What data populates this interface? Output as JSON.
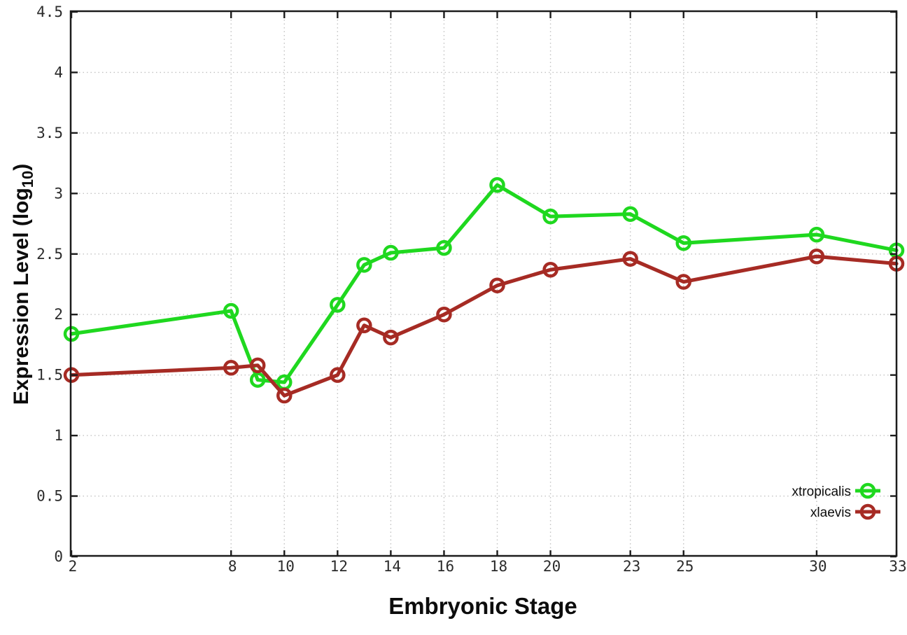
{
  "chart_data": {
    "type": "line",
    "title": "",
    "xlabel": "Embryonic Stage",
    "ylabel": "Expression Level (log10)",
    "ylabel_parts": {
      "prefix": "Expression Level (log",
      "sub": "10",
      "suffix": ")"
    },
    "x": [
      2,
      8,
      9,
      10,
      12,
      13,
      14,
      16,
      18,
      20,
      23,
      25,
      30,
      33
    ],
    "series": [
      {
        "name": "xtropicalis",
        "color": "#1fd81f",
        "values": [
          1.84,
          2.03,
          1.46,
          1.44,
          2.08,
          2.41,
          2.51,
          2.55,
          3.07,
          2.81,
          2.83,
          2.59,
          2.66,
          2.53
        ]
      },
      {
        "name": "xlaevis",
        "color": "#a62b24",
        "values": [
          1.5,
          1.56,
          1.58,
          1.33,
          1.5,
          1.91,
          1.81,
          2.0,
          2.24,
          2.37,
          2.46,
          2.27,
          2.48,
          2.42
        ]
      }
    ],
    "x_ticks": [
      2,
      8,
      10,
      12,
      14,
      16,
      18,
      20,
      23,
      25,
      30,
      33
    ],
    "x_tick_labels": [
      "2",
      "8",
      "10",
      "12",
      "14",
      "16",
      "18",
      "20",
      "23",
      "25",
      "30",
      "33"
    ],
    "y_ticks": [
      0,
      0.5,
      1,
      1.5,
      2,
      2.5,
      3,
      3.5,
      4,
      4.5
    ],
    "y_tick_labels": [
      "0",
      "0.5",
      "1",
      "1.5",
      "2",
      "2.5",
      "3",
      "3.5",
      "4",
      "4.5"
    ],
    "xlim": [
      2,
      33
    ],
    "ylim": [
      0,
      4.5
    ],
    "grid": true,
    "grid_style": "dotted",
    "legend_position": "bottom-right",
    "marker": "open-circle",
    "colors": {
      "frame": "#1c1c1c",
      "grid": "#c2c2c2",
      "tick_text": "#2b2b2b",
      "background": "#ffffff"
    }
  }
}
